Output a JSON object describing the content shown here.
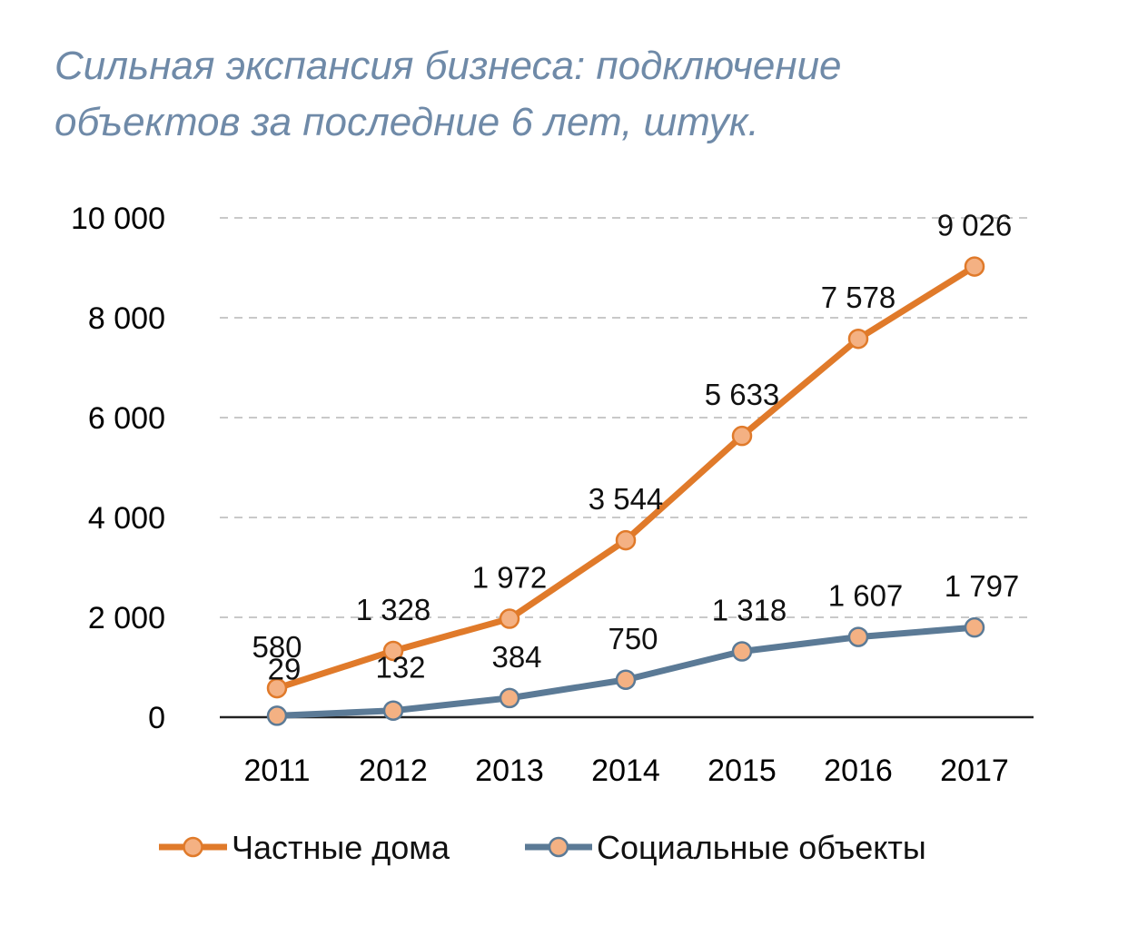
{
  "chart_data": {
    "type": "line",
    "title": [
      "Сильная экспансия бизнеса: подключение",
      "объектов за последние 6 лет, штук."
    ],
    "categories": [
      "2011",
      "2012",
      "2013",
      "2014",
      "2015",
      "2016",
      "2017"
    ],
    "series": [
      {
        "name": "Частные дома",
        "color": "#e07a2a",
        "marker": "#f4b183",
        "values": [
          580,
          1328,
          1972,
          3544,
          5633,
          7578,
          9026
        ],
        "labels": [
          "580",
          "1 328",
          "1 972",
          "3 544",
          "5 633",
          "7 578",
          "9 026"
        ]
      },
      {
        "name": "Социальные объекты",
        "color": "#5b7a96",
        "marker": "#f4b183",
        "values": [
          29,
          132,
          384,
          750,
          1318,
          1607,
          1797
        ],
        "labels": [
          "29",
          "132",
          "384",
          "750",
          "1 318",
          "1 607",
          "1 797"
        ]
      }
    ],
    "ylim": [
      0,
      10000
    ],
    "yticks": [
      0,
      2000,
      4000,
      6000,
      8000,
      10000
    ],
    "ytick_labels": [
      "0",
      "2 000",
      "4 000",
      "6 000",
      "8 000",
      "10 000"
    ],
    "grid": true,
    "legend_position": "bottom"
  }
}
